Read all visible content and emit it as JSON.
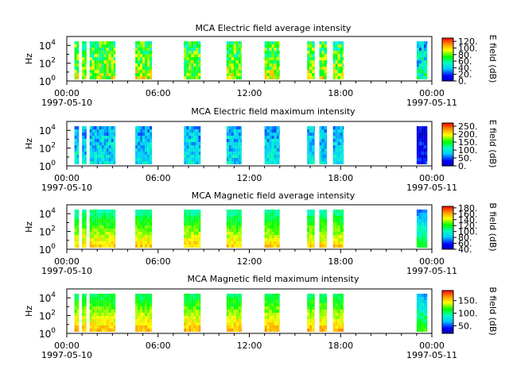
{
  "chart_data": [
    {
      "type": "heatmap",
      "title": "MCA  Electric field average intensity",
      "ylabel": "Hz",
      "colorbar_label": "E field (dB)",
      "colorbar_ticks": [
        "0.",
        "20.",
        "40.",
        "60.",
        "80.",
        "100.",
        "120."
      ],
      "colorbar_range": [
        0,
        130
      ],
      "y_ticks": [
        "10^0",
        "10^2",
        "10^4"
      ],
      "x_ticks": [
        "00:00",
        "06:00",
        "12:00",
        "18:00",
        "00:00"
      ],
      "x_date_labels": [
        "1997-05-10",
        "1997-05-11"
      ],
      "log_y": true,
      "ylim_hz": [
        1,
        100000
      ]
    },
    {
      "type": "heatmap",
      "title": "MCA  Electric field maximum intensity",
      "ylabel": "Hz",
      "colorbar_label": "E field (dB)",
      "colorbar_ticks": [
        "0.",
        "50.",
        "100.",
        "150.",
        "200.",
        "250."
      ],
      "colorbar_range": [
        0,
        270
      ],
      "y_ticks": [
        "10^0",
        "10^2",
        "10^4"
      ],
      "x_ticks": [
        "00:00",
        "06:00",
        "12:00",
        "18:00",
        "00:00"
      ],
      "x_date_labels": [
        "1997-05-10",
        "1997-05-11"
      ],
      "log_y": true,
      "ylim_hz": [
        1,
        100000
      ]
    },
    {
      "type": "heatmap",
      "title": "MCA  Magnetic field average intensity",
      "ylabel": "Hz",
      "colorbar_label": "B field (dB)",
      "colorbar_ticks": [
        "40.",
        "60.",
        "80.",
        "100.",
        "120.",
        "140.",
        "160.",
        "180."
      ],
      "colorbar_range": [
        40,
        185
      ],
      "y_ticks": [
        "10^0",
        "10^2",
        "10^4"
      ],
      "x_ticks": [
        "00:00",
        "06:00",
        "12:00",
        "18:00",
        "00:00"
      ],
      "x_date_labels": [
        "1997-05-10",
        "1997-05-11"
      ],
      "log_y": true,
      "ylim_hz": [
        1,
        100000
      ]
    },
    {
      "type": "heatmap",
      "title": "MCA  Magnetic field maximum intensity",
      "ylabel": "Hz",
      "colorbar_label": "B field (dB)",
      "colorbar_ticks": [
        "50.",
        "100.",
        "150."
      ],
      "colorbar_range": [
        20,
        190
      ],
      "y_ticks": [
        "10^0",
        "10^2",
        "10^4"
      ],
      "x_ticks": [
        "00:00",
        "06:00",
        "12:00",
        "18:00",
        "00:00"
      ],
      "x_date_labels": [
        "1997-05-10",
        "1997-05-11"
      ],
      "log_y": true,
      "ylim_hz": [
        1,
        100000
      ]
    }
  ],
  "data_intervals_hours": [
    [
      0.5,
      0.8
    ],
    [
      1.0,
      1.3
    ],
    [
      1.5,
      3.2
    ],
    [
      4.5,
      5.6
    ],
    [
      7.7,
      8.8
    ],
    [
      10.5,
      11.5
    ],
    [
      13.0,
      14.0
    ],
    [
      15.8,
      16.3
    ],
    [
      16.6,
      17.1
    ],
    [
      17.5,
      18.2
    ],
    [
      23.0,
      23.7
    ]
  ]
}
